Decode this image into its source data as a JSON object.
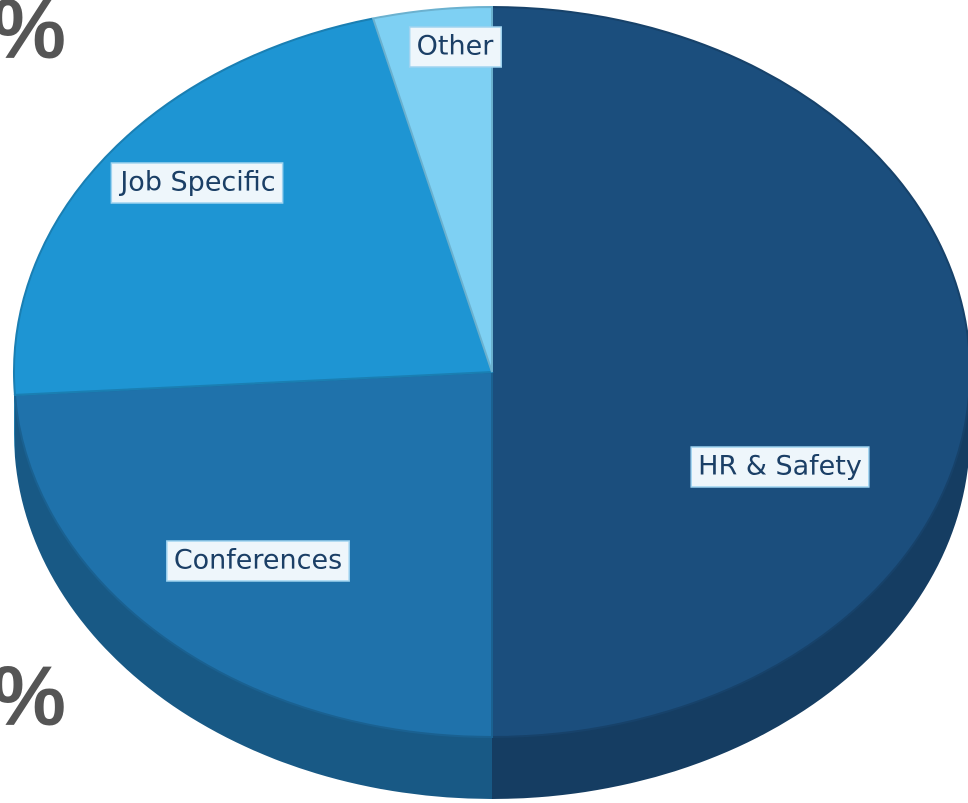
{
  "chart_data": {
    "type": "pie",
    "categories": [
      "HR & Safety",
      "Conferences",
      "Job Specific",
      "Other"
    ],
    "values": [
      50,
      24,
      22,
      4
    ],
    "colors": [
      "#1b4e7d",
      "#1f72ab",
      "#1e95d3",
      "#7ed0f3"
    ],
    "annotations": [
      "%",
      "%"
    ]
  }
}
